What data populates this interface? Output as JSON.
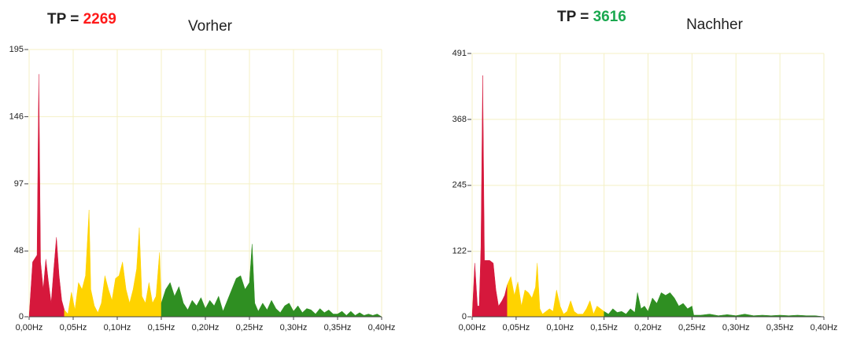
{
  "chart_data": [
    {
      "type": "area",
      "title": "Vorher",
      "tp_label": "TP =",
      "tp_value": 2269,
      "tp_color": "#ff1a1a",
      "xlim": [
        0,
        0.4
      ],
      "xticks": [
        {
          "value": 0,
          "label": "0,00Hz"
        },
        {
          "value": 0.05,
          "label": "0,05Hz"
        },
        {
          "value": 0.1,
          "label": "0,10Hz"
        },
        {
          "value": 0.15,
          "label": "0,15Hz"
        },
        {
          "value": 0.2,
          "label": "0,20Hz"
        },
        {
          "value": 0.25,
          "label": "0,25Hz"
        },
        {
          "value": 0.3,
          "label": "0,30Hz"
        },
        {
          "value": 0.35,
          "label": "0,35Hz"
        },
        {
          "value": 0.4,
          "label": "0,40Hz"
        }
      ],
      "ylim": [
        0,
        195
      ],
      "yticks": [
        0,
        48,
        97,
        146,
        195
      ],
      "grid": true,
      "series": [
        {
          "color": "#d6183c",
          "x": [
            0,
            0.004,
            0.009,
            0.011,
            0.013,
            0.016,
            0.019,
            0.022,
            0.025,
            0.028,
            0.031,
            0.034,
            0.037,
            0.04
          ],
          "values": [
            0,
            40,
            45,
            177,
            40,
            20,
            42,
            25,
            10,
            35,
            58,
            30,
            12,
            5
          ]
        },
        {
          "color": "#ffd300",
          "x": [
            0.04,
            0.044,
            0.048,
            0.052,
            0.056,
            0.06,
            0.064,
            0.068,
            0.07,
            0.074,
            0.078,
            0.082,
            0.086,
            0.09,
            0.094,
            0.098,
            0.102,
            0.106,
            0.11,
            0.114,
            0.118,
            0.122,
            0.125,
            0.128,
            0.132,
            0.136,
            0.14,
            0.144,
            0.148,
            0.15
          ],
          "values": [
            5,
            2,
            18,
            5,
            25,
            20,
            30,
            78,
            20,
            8,
            3,
            10,
            30,
            20,
            12,
            28,
            30,
            40,
            20,
            10,
            20,
            35,
            65,
            15,
            10,
            25,
            10,
            15,
            47,
            10
          ]
        },
        {
          "color": "#2f8f22",
          "x": [
            0.15,
            0.155,
            0.16,
            0.165,
            0.17,
            0.175,
            0.18,
            0.185,
            0.19,
            0.195,
            0.2,
            0.205,
            0.21,
            0.215,
            0.22,
            0.225,
            0.23,
            0.235,
            0.24,
            0.245,
            0.25,
            0.253,
            0.256,
            0.26,
            0.265,
            0.27,
            0.275,
            0.28,
            0.285,
            0.29,
            0.295,
            0.3,
            0.305,
            0.31,
            0.315,
            0.32,
            0.325,
            0.33,
            0.335,
            0.34,
            0.345,
            0.35,
            0.355,
            0.36,
            0.365,
            0.37,
            0.375,
            0.38,
            0.385,
            0.39,
            0.395,
            0.4
          ],
          "values": [
            10,
            20,
            25,
            15,
            22,
            10,
            5,
            12,
            8,
            14,
            6,
            12,
            8,
            15,
            4,
            12,
            20,
            28,
            30,
            20,
            25,
            53,
            10,
            4,
            10,
            5,
            12,
            6,
            3,
            8,
            10,
            4,
            8,
            3,
            6,
            5,
            2,
            6,
            3,
            5,
            2,
            2,
            4,
            1,
            4,
            1,
            3,
            1,
            2,
            1,
            2,
            0
          ]
        }
      ]
    },
    {
      "type": "area",
      "title": "Nachher",
      "tp_label": "TP =",
      "tp_value": 3616,
      "tp_color": "#1aa84f",
      "xlim": [
        0,
        0.4
      ],
      "xticks": [
        {
          "value": 0,
          "label": "0,00Hz"
        },
        {
          "value": 0.05,
          "label": "0,05Hz"
        },
        {
          "value": 0.1,
          "label": "0,10Hz"
        },
        {
          "value": 0.15,
          "label": "0,15Hz"
        },
        {
          "value": 0.2,
          "label": "0,20Hz"
        },
        {
          "value": 0.25,
          "label": "0,25Hz"
        },
        {
          "value": 0.3,
          "label": "0,30Hz"
        },
        {
          "value": 0.35,
          "label": "0,35Hz"
        },
        {
          "value": 0.4,
          "label": "0,40Hz"
        }
      ],
      "ylim": [
        0,
        491
      ],
      "yticks": [
        0,
        122,
        245,
        368,
        491
      ],
      "grid": true,
      "series": [
        {
          "color": "#d6183c",
          "x": [
            0,
            0.003,
            0.006,
            0.008,
            0.01,
            0.012,
            0.014,
            0.02,
            0.024,
            0.027,
            0.03,
            0.034,
            0.037,
            0.04
          ],
          "values": [
            0,
            100,
            20,
            20,
            130,
            450,
            105,
            105,
            100,
            50,
            20,
            30,
            40,
            60
          ]
        },
        {
          "color": "#ffd300",
          "x": [
            0.04,
            0.044,
            0.048,
            0.052,
            0.056,
            0.06,
            0.064,
            0.068,
            0.072,
            0.074,
            0.077,
            0.08,
            0.084,
            0.088,
            0.092,
            0.096,
            0.1,
            0.104,
            0.108,
            0.112,
            0.116,
            0.12,
            0.126,
            0.13,
            0.134,
            0.138,
            0.142,
            0.146,
            0.15
          ],
          "values": [
            60,
            75,
            40,
            65,
            20,
            50,
            45,
            35,
            55,
            100,
            15,
            5,
            10,
            15,
            10,
            50,
            20,
            5,
            10,
            30,
            10,
            5,
            5,
            15,
            30,
            5,
            20,
            15,
            10
          ]
        },
        {
          "color": "#2f8f22",
          "x": [
            0.15,
            0.155,
            0.16,
            0.165,
            0.17,
            0.175,
            0.18,
            0.185,
            0.188,
            0.192,
            0.196,
            0.2,
            0.205,
            0.21,
            0.215,
            0.22,
            0.225,
            0.23,
            0.235,
            0.24,
            0.245,
            0.25,
            0.252,
            0.26,
            0.27,
            0.28,
            0.29,
            0.3,
            0.31,
            0.32,
            0.33,
            0.34,
            0.35,
            0.36,
            0.37,
            0.38,
            0.39,
            0.4
          ],
          "values": [
            10,
            5,
            15,
            8,
            10,
            5,
            15,
            8,
            45,
            15,
            20,
            10,
            35,
            25,
            45,
            40,
            45,
            35,
            20,
            25,
            15,
            20,
            3,
            3,
            5,
            2,
            4,
            2,
            5,
            2,
            3,
            2,
            3,
            2,
            3,
            2,
            2,
            0
          ]
        }
      ]
    }
  ]
}
